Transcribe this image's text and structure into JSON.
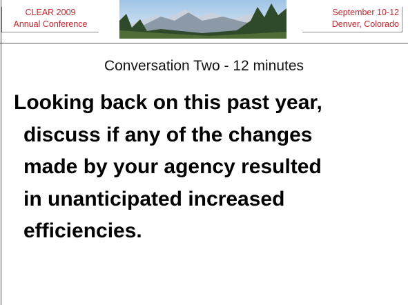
{
  "header": {
    "left": [
      "CLEAR 2009",
      "Annual Conference"
    ],
    "right": [
      "September 10-12",
      "Denver, Colorado"
    ]
  },
  "title": "Conversation Two - 12 minutes",
  "body": {
    "lines": [
      "Looking back on this past year,",
      "discuss if any of the changes",
      "made by your agency resulted",
      "in unanticipated increased",
      "efficiencies."
    ]
  }
}
